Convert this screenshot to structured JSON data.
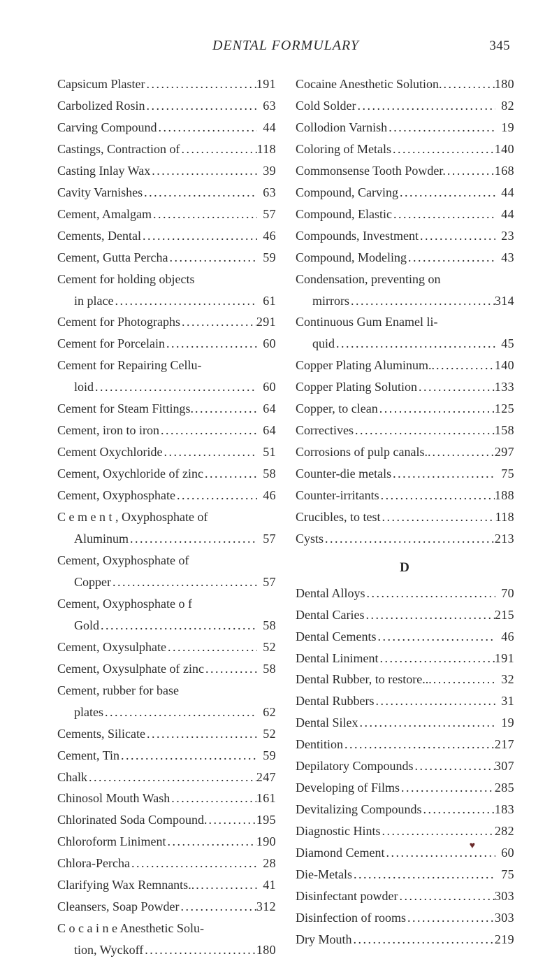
{
  "header": {
    "title": "DENTAL FORMULARY",
    "page_number": "345"
  },
  "columns": {
    "left": [
      {
        "label": "Capsicum Plaster",
        "page": "191"
      },
      {
        "label": "Carbolized Rosin",
        "page": "63"
      },
      {
        "label": "Carving Compound",
        "page": "44"
      },
      {
        "label": "Castings, Contraction of",
        "page": "118"
      },
      {
        "label": "Casting Inlay Wax",
        "page": "39"
      },
      {
        "label": "Cavity Varnishes",
        "page": "63"
      },
      {
        "label": "Cement, Amalgam",
        "page": "57"
      },
      {
        "label": "Cements, Dental",
        "page": "46"
      },
      {
        "label": "Cement, Gutta Percha",
        "page": "59"
      },
      {
        "label": "Cement for holding objects",
        "nowrap_only": true
      },
      {
        "label": "in place",
        "page": "61",
        "cont": true
      },
      {
        "label": "Cement for Photographs",
        "page": "291"
      },
      {
        "label": "Cement for Porcelain",
        "page": "60"
      },
      {
        "label": "Cement for Repairing Cellu-",
        "nowrap_only": true
      },
      {
        "label": "loid",
        "page": "60",
        "cont": true
      },
      {
        "label": "Cement for Steam Fittings.",
        "page": "64"
      },
      {
        "label": "Cement, iron to iron",
        "page": "64"
      },
      {
        "label": "Cement Oxychloride",
        "page": "51"
      },
      {
        "label": "Cement, Oxychloride of zinc",
        "page": "58"
      },
      {
        "label": "Cement, Oxyphosphate",
        "page": "46"
      },
      {
        "label": "C e m e n t , Oxyphosphate of",
        "nowrap_only": true
      },
      {
        "label": "Aluminum",
        "page": "57",
        "cont": true
      },
      {
        "label": "Cement,   Oxyphosphate   of",
        "nowrap_only": true
      },
      {
        "label": "Copper",
        "page": "57",
        "cont": true
      },
      {
        "label": "Cement,   Oxyphosphate   o f",
        "nowrap_only": true
      },
      {
        "label": "Gold",
        "page": "58",
        "cont": true
      },
      {
        "label": "Cement, Oxysulphate",
        "page": "52"
      },
      {
        "label": "Cement, Oxysulphate of zinc",
        "page": "58"
      },
      {
        "label": "Cement,   rubber   for   base",
        "nowrap_only": true
      },
      {
        "label": "plates",
        "page": "62",
        "cont": true
      },
      {
        "label": "Cements, Silicate",
        "page": "52"
      },
      {
        "label": "Cement, Tin",
        "page": "59"
      },
      {
        "label": "Chalk",
        "page": "247"
      },
      {
        "label": "Chinosol Mouth Wash",
        "page": "161"
      },
      {
        "label": "Chlorinated Soda Compound.",
        "page": "195"
      },
      {
        "label": "Chloroform Liniment",
        "page": "190"
      },
      {
        "label": "Chlora-Percha",
        "page": "28"
      },
      {
        "label": "Clarifying Wax Remnants..",
        "page": "41"
      },
      {
        "label": "Cleansers, Soap Powder",
        "page": "312"
      },
      {
        "label": "C o c a i n e  Anesthetic Solu-",
        "nowrap_only": true
      },
      {
        "label": "tion, Wyckoff",
        "page": "180",
        "cont": true
      }
    ],
    "right": [
      {
        "label": "Cocaine Anesthetic Solution.",
        "page": "180"
      },
      {
        "label": "Cold Solder",
        "page": "82"
      },
      {
        "label": "Collodion Varnish",
        "page": "19"
      },
      {
        "label": "Coloring of Metals",
        "page": "140"
      },
      {
        "label": "Commonsense Tooth Powder.",
        "page": "168"
      },
      {
        "label": "Compound, Carving",
        "page": "44"
      },
      {
        "label": "Compound, Elastic",
        "page": "44"
      },
      {
        "label": "Compounds, Investment",
        "page": "23"
      },
      {
        "label": "Compound, Modeling",
        "page": "43"
      },
      {
        "label": "Condensation, preventing on",
        "nowrap_only": true
      },
      {
        "label": "mirrors",
        "page": "314",
        "cont": true
      },
      {
        "label": "Continuous Gum Enamel li-",
        "nowrap_only": true
      },
      {
        "label": "quid",
        "page": "45",
        "cont": true
      },
      {
        "label": "Copper Plating Aluminum..",
        "page": "140"
      },
      {
        "label": "Copper Plating Solution",
        "page": "133"
      },
      {
        "label": "Copper, to clean",
        "page": "125"
      },
      {
        "label": "Correctives",
        "page": "158"
      },
      {
        "label": "Corrosions of pulp canals..",
        "page": "297"
      },
      {
        "label": "Counter-die metals",
        "page": "75"
      },
      {
        "label": "Counter-irritants",
        "page": "188"
      },
      {
        "label": "Crucibles, to test",
        "page": "118"
      },
      {
        "label": "Cysts",
        "page": "213"
      },
      {
        "section": "D"
      },
      {
        "label": "Dental Alloys",
        "page": "70"
      },
      {
        "label": "Dental Caries",
        "page": "215"
      },
      {
        "label": "Dental Cements",
        "page": "46"
      },
      {
        "label": "Dental Liniment",
        "page": "191"
      },
      {
        "label": "Dental Rubber, to restore...",
        "page": "32"
      },
      {
        "label": "Dental Rubbers",
        "page": "31"
      },
      {
        "label": "Dental Silex",
        "page": "19"
      },
      {
        "label": "Dentition",
        "page": "217"
      },
      {
        "label": "Depilatory Compounds",
        "page": "307"
      },
      {
        "label": "Developing of Films",
        "page": "285"
      },
      {
        "label": "Devitalizing Compounds",
        "page": "183"
      },
      {
        "label": "Diagnostic Hints",
        "page": "282"
      },
      {
        "label": "Diamond Cement",
        "page": "60"
      },
      {
        "label": "Die-Metals",
        "page": "75"
      },
      {
        "label": "Disinfectant powder",
        "page": "303"
      },
      {
        "label": "Disinfection of rooms",
        "page": "303"
      },
      {
        "label": "Dry Mouth",
        "page": "219"
      }
    ]
  },
  "foot_mark": "♥",
  "style": {
    "dot_char": "."
  }
}
